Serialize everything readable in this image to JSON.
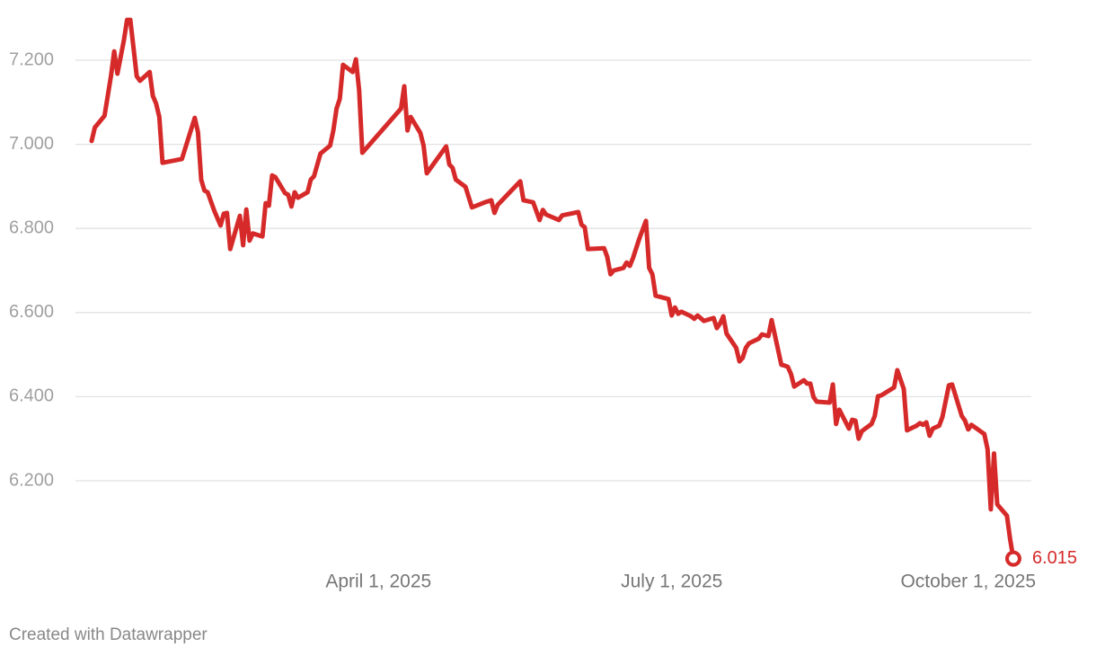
{
  "chart_data": {
    "type": "line",
    "source": "Created with Datawrapper",
    "xlim": [
      "2025-01-02",
      "2025-10-15"
    ],
    "xticks": [
      {
        "value": "2025-04-01",
        "label": "April 1, 2025"
      },
      {
        "value": "2025-07-01",
        "label": "July 1, 2025"
      },
      {
        "value": "2025-10-01",
        "label": "October 1, 2025"
      }
    ],
    "ylim": [
      6.0,
      7.3
    ],
    "yticks": [
      {
        "value": 6.2,
        "label": "6.200"
      },
      {
        "value": 6.4,
        "label": "6.400"
      },
      {
        "value": 6.6,
        "label": "6.600"
      },
      {
        "value": 6.8,
        "label": "6.800"
      },
      {
        "value": 7.0,
        "label": "7.000"
      },
      {
        "value": 7.2,
        "label": "7.200"
      }
    ],
    "grid": true,
    "x": [
      "2025-01-02",
      "2025-01-03",
      "2025-01-06",
      "2025-01-08",
      "2025-01-09",
      "2025-01-10",
      "2025-01-12",
      "2025-01-13",
      "2025-01-14",
      "2025-01-16",
      "2025-01-17",
      "2025-01-20",
      "2025-01-21",
      "2025-01-22",
      "2025-01-23",
      "2025-01-24",
      "2025-01-30",
      "2025-02-03",
      "2025-02-04",
      "2025-02-05",
      "2025-02-06",
      "2025-02-07",
      "2025-02-09",
      "2025-02-11",
      "2025-02-12",
      "2025-02-13",
      "2025-02-14",
      "2025-02-17",
      "2025-02-18",
      "2025-02-19",
      "2025-02-20",
      "2025-02-21",
      "2025-02-24",
      "2025-02-25",
      "2025-02-26",
      "2025-02-27",
      "2025-02-28",
      "2025-03-03",
      "2025-03-04",
      "2025-03-05",
      "2025-03-06",
      "2025-03-07",
      "2025-03-10",
      "2025-03-11",
      "2025-03-12",
      "2025-03-14",
      "2025-03-17",
      "2025-03-18",
      "2025-03-19",
      "2025-03-20",
      "2025-03-21",
      "2025-03-24",
      "2025-03-25",
      "2025-03-26",
      "2025-03-27",
      "2025-04-08",
      "2025-04-09",
      "2025-04-10",
      "2025-04-11",
      "2025-04-14",
      "2025-04-15",
      "2025-04-16",
      "2025-04-22",
      "2025-04-23",
      "2025-04-24",
      "2025-04-25",
      "2025-04-28",
      "2025-04-30",
      "2025-05-04",
      "2025-05-06",
      "2025-05-07",
      "2025-05-08",
      "2025-05-15",
      "2025-05-16",
      "2025-05-19",
      "2025-05-21",
      "2025-05-22",
      "2025-05-23",
      "2025-05-27",
      "2025-05-28",
      "2025-06-02",
      "2025-06-03",
      "2025-06-04",
      "2025-06-05",
      "2025-06-10",
      "2025-06-11",
      "2025-06-12",
      "2025-06-13",
      "2025-06-16",
      "2025-06-17",
      "2025-06-18",
      "2025-06-19",
      "2025-06-21",
      "2025-06-23",
      "2025-06-24",
      "2025-06-25",
      "2025-06-26",
      "2025-06-30",
      "2025-07-01",
      "2025-07-02",
      "2025-07-03",
      "2025-07-04",
      "2025-07-07",
      "2025-07-08",
      "2025-07-09",
      "2025-07-11",
      "2025-07-14",
      "2025-07-15",
      "2025-07-16",
      "2025-07-17",
      "2025-07-18",
      "2025-07-21",
      "2025-07-22",
      "2025-07-23",
      "2025-07-24",
      "2025-07-25",
      "2025-07-28",
      "2025-07-29",
      "2025-07-31",
      "2025-08-01",
      "2025-08-04",
      "2025-08-05",
      "2025-08-06",
      "2025-08-07",
      "2025-08-08",
      "2025-08-11",
      "2025-08-12",
      "2025-08-13",
      "2025-08-14",
      "2025-08-15",
      "2025-08-19",
      "2025-08-20",
      "2025-08-21",
      "2025-08-22",
      "2025-08-25",
      "2025-08-26",
      "2025-08-27",
      "2025-08-28",
      "2025-08-29",
      "2025-09-01",
      "2025-09-02",
      "2025-09-03",
      "2025-09-04",
      "2025-09-08",
      "2025-09-09",
      "2025-09-11",
      "2025-09-12",
      "2025-09-15",
      "2025-09-16",
      "2025-09-17",
      "2025-09-18",
      "2025-09-19",
      "2025-09-20",
      "2025-09-22",
      "2025-09-23",
      "2025-09-25",
      "2025-09-26",
      "2025-09-29",
      "2025-09-30",
      "2025-10-01",
      "2025-10-02",
      "2025-10-06",
      "2025-10-07",
      "2025-10-08",
      "2025-10-09",
      "2025-10-10",
      "2025-10-13",
      "2025-10-14",
      "2025-10-15"
    ],
    "series": [
      {
        "color": "#d62a2a",
        "values": [
          7.008,
          7.04,
          7.068,
          7.162,
          7.221,
          7.168,
          7.247,
          7.296,
          7.296,
          7.162,
          7.151,
          7.172,
          7.115,
          7.097,
          7.065,
          6.956,
          6.965,
          7.063,
          7.029,
          6.916,
          6.89,
          6.886,
          6.843,
          6.807,
          6.835,
          6.837,
          6.751,
          6.83,
          6.76,
          6.845,
          6.771,
          6.788,
          6.781,
          6.86,
          6.854,
          6.926,
          6.922,
          6.884,
          6.88,
          6.852,
          6.886,
          6.873,
          6.886,
          6.916,
          6.924,
          6.978,
          6.997,
          7.033,
          7.085,
          7.108,
          7.189,
          7.172,
          7.202,
          7.129,
          6.98,
          7.085,
          7.138,
          7.033,
          7.065,
          7.027,
          6.997,
          6.931,
          6.995,
          6.952,
          6.944,
          6.916,
          6.899,
          6.85,
          6.862,
          6.867,
          6.837,
          6.856,
          6.912,
          6.867,
          6.862,
          6.82,
          6.844,
          6.833,
          6.82,
          6.831,
          6.839,
          6.809,
          6.803,
          6.751,
          6.753,
          6.732,
          6.691,
          6.7,
          6.706,
          6.719,
          6.711,
          6.73,
          6.777,
          6.818,
          6.706,
          6.691,
          6.64,
          6.632,
          6.593,
          6.612,
          6.597,
          6.602,
          6.591,
          6.585,
          6.593,
          6.58,
          6.587,
          6.563,
          6.574,
          6.591,
          6.55,
          6.516,
          6.484,
          6.492,
          6.516,
          6.527,
          6.538,
          6.548,
          6.544,
          6.582,
          6.476,
          6.474,
          6.471,
          6.454,
          6.424,
          6.439,
          6.431,
          6.431,
          6.399,
          6.388,
          6.386,
          6.429,
          6.335,
          6.369,
          6.324,
          6.345,
          6.343,
          6.3,
          6.318,
          6.335,
          6.354,
          6.401,
          6.403,
          6.422,
          6.463,
          6.418,
          6.32,
          6.331,
          6.337,
          6.333,
          6.339,
          6.307,
          6.324,
          6.331,
          6.352,
          6.427,
          6.429,
          6.354,
          6.343,
          6.322,
          6.333,
          6.311,
          6.275,
          6.132,
          6.265,
          6.144,
          6.117,
          6.061,
          6.015
        ],
        "value_labels": [
          null,
          null,
          null,
          null,
          null,
          null,
          null,
          null,
          null,
          null,
          null,
          null,
          null,
          null,
          null,
          null,
          null,
          null,
          null,
          null,
          null,
          null,
          null,
          null,
          null,
          null,
          null,
          null,
          null,
          null,
          null,
          null,
          null,
          null,
          null,
          null,
          null,
          null,
          null,
          null,
          null,
          null,
          null,
          null,
          null,
          null,
          null,
          null,
          null,
          null,
          null,
          null,
          null,
          null,
          null,
          null,
          null,
          null,
          null,
          null,
          null,
          null,
          null,
          null,
          null,
          null,
          null,
          null,
          null,
          null,
          null,
          null,
          null,
          null,
          null,
          null,
          null,
          null,
          null,
          null,
          null,
          null,
          null,
          null,
          null,
          null,
          null,
          null,
          null,
          null,
          null,
          null,
          null,
          null,
          null,
          null,
          null,
          null,
          null,
          null,
          null,
          null,
          null,
          null,
          null,
          null,
          null,
          null,
          null,
          null,
          null,
          null,
          null,
          null,
          null,
          null,
          null,
          null,
          null,
          null,
          null,
          null,
          null,
          null,
          null,
          null,
          null,
          null,
          null,
          null,
          null,
          null,
          null,
          null,
          null,
          null,
          null,
          null,
          null,
          null,
          null,
          null,
          null,
          null,
          null,
          null,
          null,
          null,
          null,
          null,
          null,
          null,
          null,
          null,
          null,
          null,
          null,
          null,
          null,
          null,
          null,
          null,
          null,
          null,
          null,
          null,
          null,
          null,
          "6.015"
        ]
      }
    ]
  }
}
